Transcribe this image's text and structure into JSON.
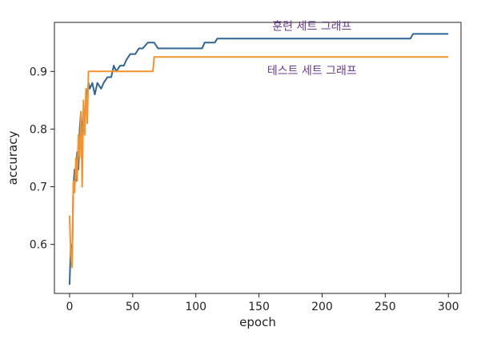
{
  "chart_data": {
    "type": "line",
    "title": "",
    "xlabel": "epoch",
    "ylabel": "accuracy",
    "xlim": [
      -12,
      310
    ],
    "ylim": [
      0.515,
      0.985
    ],
    "xticks": [
      0,
      50,
      100,
      150,
      200,
      250,
      300
    ],
    "yticks": [
      0.6,
      0.7,
      0.8,
      0.9
    ],
    "ytick_labels": [
      "0.6",
      "0.7",
      "0.8",
      "0.9"
    ],
    "grid": false,
    "colors": {
      "train": "#2f6695",
      "test": "#f2932e",
      "annotation": "#6a3d8f"
    },
    "annotations": [
      {
        "text": "훈련 세트 그래프",
        "series": "train"
      },
      {
        "text": "테스트 세트 그래프",
        "series": "test"
      }
    ],
    "series": [
      {
        "key": "train",
        "points": [
          [
            0,
            0.53
          ],
          [
            1,
            0.6
          ],
          [
            2,
            0.57
          ],
          [
            3,
            0.7
          ],
          [
            4,
            0.73
          ],
          [
            5,
            0.71
          ],
          [
            6,
            0.76
          ],
          [
            7,
            0.73
          ],
          [
            8,
            0.8
          ],
          [
            9,
            0.83
          ],
          [
            10,
            0.78
          ],
          [
            11,
            0.83
          ],
          [
            12,
            0.82
          ],
          [
            13,
            0.84
          ],
          [
            14,
            0.86
          ],
          [
            15,
            0.88
          ],
          [
            16,
            0.87
          ],
          [
            18,
            0.88
          ],
          [
            20,
            0.86
          ],
          [
            22,
            0.88
          ],
          [
            25,
            0.87
          ],
          [
            27,
            0.88
          ],
          [
            30,
            0.89
          ],
          [
            33,
            0.89
          ],
          [
            35,
            0.91
          ],
          [
            37,
            0.9
          ],
          [
            40,
            0.91
          ],
          [
            43,
            0.91
          ],
          [
            45,
            0.92
          ],
          [
            48,
            0.93
          ],
          [
            52,
            0.93
          ],
          [
            55,
            0.94
          ],
          [
            58,
            0.94
          ],
          [
            62,
            0.95
          ],
          [
            67,
            0.95
          ],
          [
            70,
            0.94
          ],
          [
            105,
            0.94
          ],
          [
            107,
            0.95
          ],
          [
            115,
            0.95
          ],
          [
            117,
            0.957
          ],
          [
            270,
            0.957
          ],
          [
            272,
            0.965
          ],
          [
            300,
            0.965
          ]
        ]
      },
      {
        "key": "test",
        "points": [
          [
            0,
            0.65
          ],
          [
            1,
            0.58
          ],
          [
            2,
            0.56
          ],
          [
            3,
            0.71
          ],
          [
            4,
            0.69
          ],
          [
            5,
            0.75
          ],
          [
            6,
            0.71
          ],
          [
            7,
            0.79
          ],
          [
            8,
            0.75
          ],
          [
            9,
            0.83
          ],
          [
            10,
            0.7
          ],
          [
            11,
            0.85
          ],
          [
            12,
            0.79
          ],
          [
            13,
            0.87
          ],
          [
            14,
            0.81
          ],
          [
            15,
            0.9
          ],
          [
            66,
            0.9
          ],
          [
            67,
            0.925
          ],
          [
            300,
            0.925
          ]
        ]
      }
    ]
  }
}
